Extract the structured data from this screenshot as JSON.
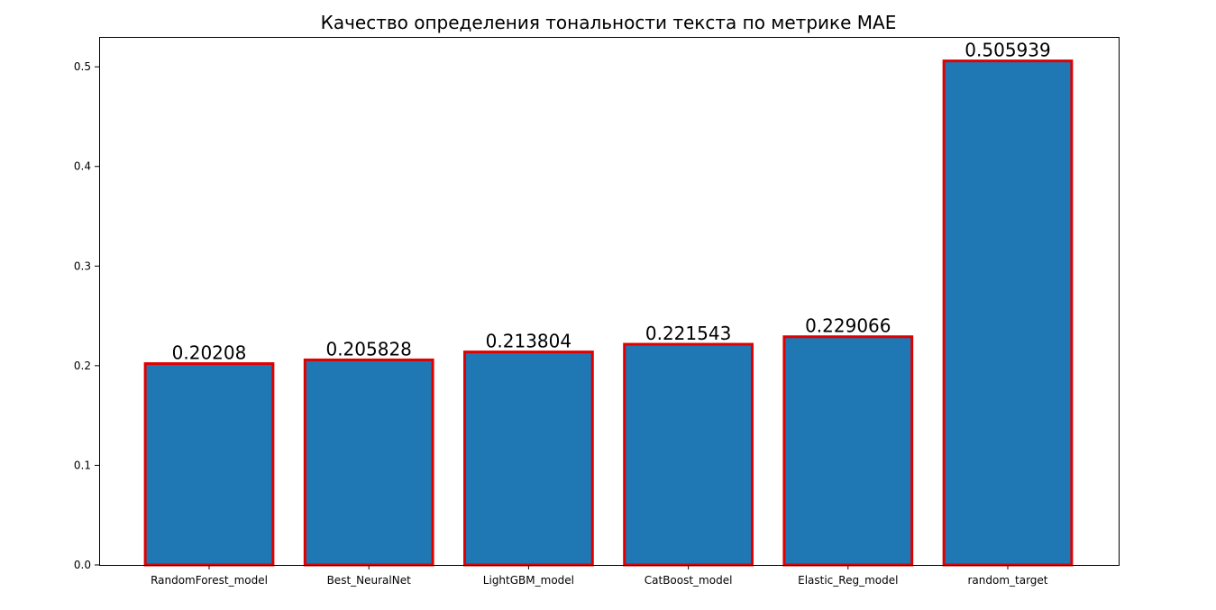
{
  "chart_data": {
    "type": "bar",
    "title": "Качество определения тональности текста по метрике MAE",
    "xlabel": "",
    "ylabel": "",
    "categories": [
      "RandomForest_model",
      "Best_NeuralNet",
      "LightGBM_model",
      "CatBoost_model",
      "Elastic_Reg_model",
      "random_target"
    ],
    "values": [
      0.20208,
      0.205828,
      0.213804,
      0.221543,
      0.229066,
      0.505939
    ],
    "data_labels": [
      "0.20208",
      "0.205828",
      "0.213804",
      "0.221543",
      "0.229066",
      "0.505939"
    ],
    "ylim": [
      0,
      0.53
    ],
    "yticks": [
      0.0,
      0.1,
      0.2,
      0.3,
      0.4,
      0.5
    ],
    "ytick_labels": [
      "0.0",
      "0.1",
      "0.2",
      "0.3",
      "0.4",
      "0.5"
    ],
    "grid": false,
    "colors": {
      "bar_fill": "#1f77b4",
      "bar_edge": "#e00000",
      "axis": "#000000"
    }
  }
}
